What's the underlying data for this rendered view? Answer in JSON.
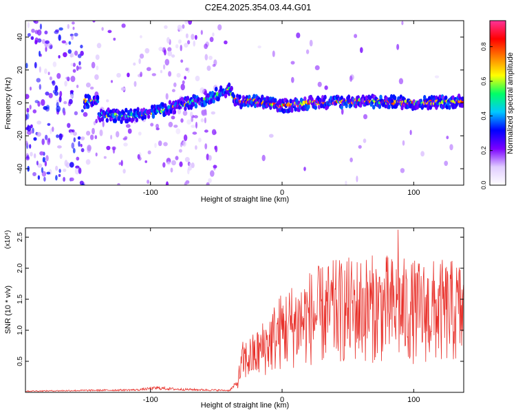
{
  "figure": {
    "title": "C2E4.2025.354.03.44.G01"
  },
  "chart_data": [
    {
      "type": "heatmap",
      "name": "spectrogram",
      "xlabel": "Height of straight line (km)",
      "ylabel": "Frequency (Hz)",
      "xlim": [
        -195,
        138
      ],
      "ylim": [
        -50,
        50
      ],
      "xticks": [
        -100,
        0,
        100
      ],
      "yticks": [
        -40,
        -20,
        0,
        20,
        40
      ],
      "ridge": {
        "description_points_km_hz": [
          [
            -140,
            -7
          ],
          [
            -120,
            -8
          ],
          [
            -100,
            -6
          ],
          [
            -80,
            -2
          ],
          [
            -60,
            2
          ],
          [
            -40,
            8
          ],
          [
            -35,
            1
          ],
          [
            -20,
            1
          ],
          [
            0,
            -2
          ],
          [
            20,
            0
          ],
          [
            60,
            1
          ],
          [
            100,
            0
          ],
          [
            138,
            1
          ]
        ]
      },
      "colorbar": {
        "label": "Normalized spectral amplitude",
        "range": [
          0.0,
          0.95
        ],
        "ticks": [
          "0.0",
          "0.2",
          "0.4",
          "0.6",
          "0.8"
        ],
        "tick_values": [
          0.0,
          0.2,
          0.4,
          0.6,
          0.8
        ],
        "colormap": [
          "#ffffff",
          "#e0ccff",
          "#7a00ff",
          "#0000ff",
          "#00c8ff",
          "#00ff66",
          "#ffff00",
          "#ff8000",
          "#ff0000",
          "#ff3399"
        ]
      }
    },
    {
      "type": "line",
      "name": "snr",
      "xlabel": "Height of straight line (km)",
      "ylabel": "SNR (10 * v/v)",
      "scale_label": "(x10⁴)",
      "xlim": [
        -195,
        138
      ],
      "ylim": [
        0,
        2.65
      ],
      "xticks": [
        -100,
        0,
        100
      ],
      "yticks": [
        0.5,
        1.0,
        1.5,
        2.0,
        2.5
      ],
      "ytick_labels": [
        "0.5",
        "1.0",
        "1.5",
        "2.0",
        "2.5"
      ],
      "series": [
        {
          "name": "SNR",
          "color": "#e8302a",
          "envelope_km_mean": [
            [
              -195,
              0.02
            ],
            [
              -110,
              0.04
            ],
            [
              -95,
              0.07
            ],
            [
              -80,
              0.05
            ],
            [
              -40,
              0.03
            ],
            [
              -34,
              0.15
            ],
            [
              -30,
              0.5
            ],
            [
              -20,
              0.6
            ],
            [
              -10,
              0.8
            ],
            [
              0,
              1.0
            ],
            [
              20,
              1.2
            ],
            [
              40,
              1.3
            ],
            [
              60,
              1.35
            ],
            [
              80,
              1.35
            ],
            [
              100,
              1.3
            ],
            [
              138,
              1.3
            ]
          ],
          "peak_value": 2.62,
          "peak_at_km": 88
        }
      ]
    }
  ]
}
